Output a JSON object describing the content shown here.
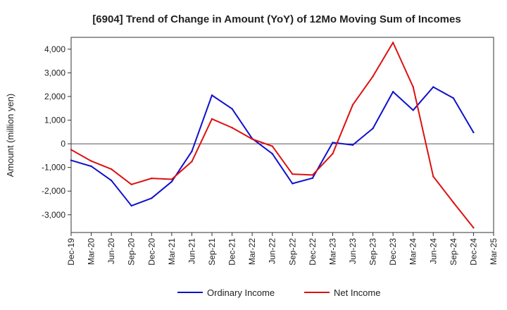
{
  "chart_data": {
    "type": "line",
    "title": "[6904]  Trend of Change in Amount (YoY) of 12Mo Moving Sum of Incomes",
    "xlabel": "",
    "ylabel": "Amount (million yen)",
    "ylim": [
      -3750,
      4500
    ],
    "yticks": [
      -3000,
      -2000,
      -1000,
      0,
      1000,
      2000,
      3000,
      4000
    ],
    "ytick_labels": [
      "-3,000",
      "-2,000",
      "-1,000",
      "0",
      "1,000",
      "2,000",
      "3,000",
      "4,000"
    ],
    "categories": [
      "Dec-19",
      "Mar-20",
      "Jun-20",
      "Sep-20",
      "Dec-20",
      "Mar-21",
      "Jun-21",
      "Sep-21",
      "Dec-21",
      "Mar-22",
      "Jun-22",
      "Sep-22",
      "Dec-22",
      "Mar-23",
      "Jun-23",
      "Sep-23",
      "Dec-23",
      "Mar-24",
      "Jun-24",
      "Sep-24",
      "Dec-24",
      "Mar-25"
    ],
    "grid": true,
    "legend_position": "bottom-center",
    "series": [
      {
        "name": "Ordinary Income",
        "color": "#1010cc",
        "values": [
          -700,
          -950,
          -1550,
          -2620,
          -2300,
          -1600,
          -320,
          2050,
          1480,
          220,
          -420,
          -1680,
          -1450,
          50,
          -50,
          650,
          2200,
          1420,
          2400,
          1930,
          480,
          null
        ]
      },
      {
        "name": "Net Income",
        "color": "#dd1010",
        "values": [
          -250,
          -730,
          -1070,
          -1720,
          -1460,
          -1500,
          -750,
          1050,
          680,
          200,
          -100,
          -1280,
          -1320,
          -420,
          1650,
          2850,
          4280,
          2400,
          -1380,
          -2480,
          -3550,
          null
        ]
      }
    ]
  }
}
